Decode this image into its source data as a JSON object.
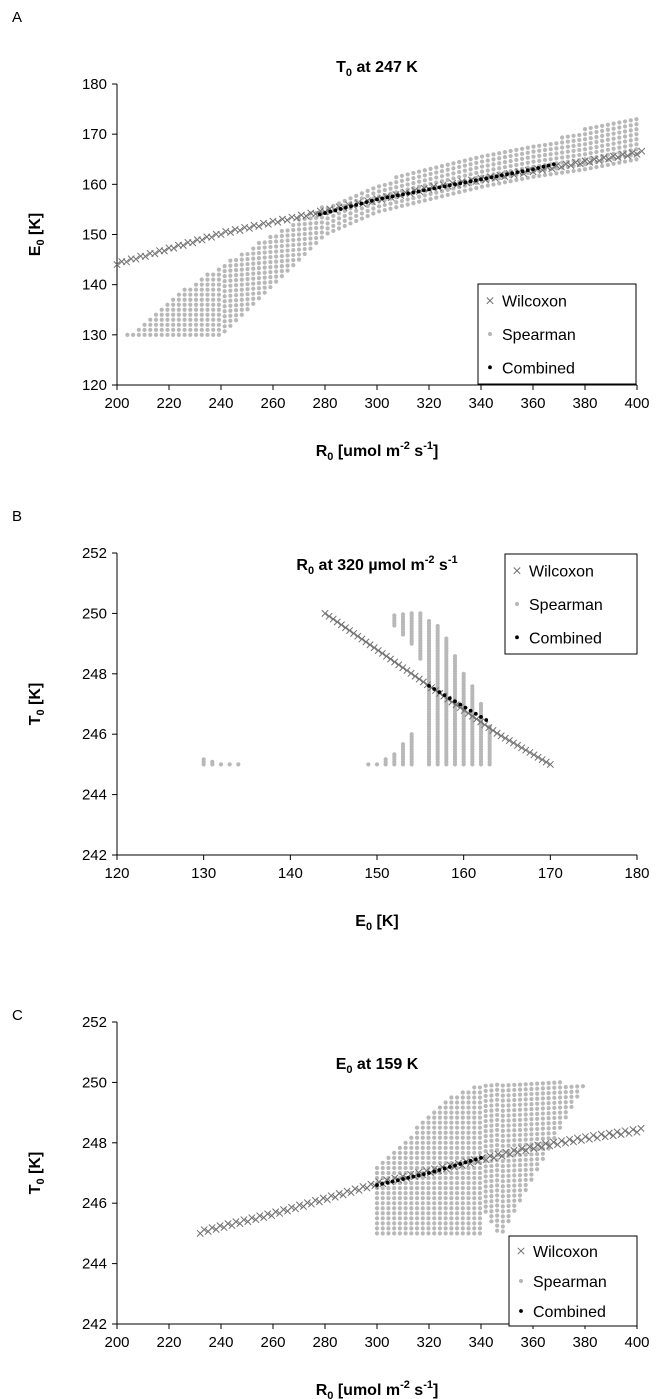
{
  "colors": {
    "wilcoxon": "#707070",
    "spearman": "#b8b8b8",
    "combined": "#000000"
  },
  "chart_data": [
    {
      "panel": "A",
      "type": "scatter",
      "title": "T0 at 247 K",
      "title_main": "T",
      "title_sub": "0",
      "title_rest": " at 247 K",
      "xlabel": "R0 [umol m-2 s-1]",
      "xlabel_parts": [
        [
          "R",
          ""
        ],
        [
          "0",
          "sub"
        ],
        [
          " [umol m",
          ""
        ],
        [
          "-2",
          "sup"
        ],
        [
          " s",
          ""
        ],
        [
          "-1",
          "sup"
        ],
        [
          "]",
          ""
        ]
      ],
      "ylabel": "E0 [K]",
      "ylabel_parts": [
        [
          "E",
          ""
        ],
        [
          "0",
          "sub"
        ],
        [
          " [K]",
          ""
        ]
      ],
      "xlim": [
        200,
        400
      ],
      "ylim": [
        120,
        180
      ],
      "xticks": [
        200,
        220,
        240,
        260,
        280,
        300,
        320,
        340,
        360,
        380,
        400
      ],
      "yticks": [
        120,
        130,
        140,
        150,
        160,
        170,
        180
      ],
      "legend_position": "bottom-right",
      "legend": [
        "Wilcoxon",
        "Spearman",
        "Combined"
      ],
      "series": [
        {
          "name": "Wilcoxon",
          "marker": "x",
          "x_range": [
            200,
            400
          ],
          "y_at_x": [
            [
              200,
              144
            ],
            [
              240,
              150
            ],
            [
              280,
              154.5
            ],
            [
              320,
              159
            ],
            [
              360,
              162.5
            ],
            [
              400,
              166
            ]
          ],
          "band_width": 1.2
        },
        {
          "name": "Spearman",
          "marker": "dot",
          "region": {
            "x_range": [
              204,
              400
            ],
            "y_min": 130,
            "lower": [
              [
                204,
                130
              ],
              [
                240,
                130
              ],
              [
                260,
                140
              ],
              [
                280,
                150
              ],
              [
                300,
                154.5
              ],
              [
                320,
                157
              ],
              [
                340,
                159.5
              ],
              [
                360,
                161.5
              ],
              [
                380,
                163
              ],
              [
                400,
                165
              ]
            ],
            "upper": [
              [
                204,
                130
              ],
              [
                220,
                137
              ],
              [
                240,
                144
              ],
              [
                260,
                150
              ],
              [
                280,
                156
              ],
              [
                300,
                160
              ],
              [
                320,
                164
              ],
              [
                340,
                166
              ],
              [
                360,
                167.5
              ],
              [
                380,
                171
              ],
              [
                400,
                173
              ]
            ]
          }
        },
        {
          "name": "Combined",
          "marker": "dot",
          "x_range": [
            278,
            368
          ],
          "y_at_x": [
            [
              278,
              154
            ],
            [
              300,
              157
            ],
            [
              320,
              159
            ],
            [
              340,
              161
            ],
            [
              360,
              163
            ],
            [
              368,
              164
            ]
          ]
        }
      ]
    },
    {
      "panel": "B",
      "type": "scatter",
      "title": "R0 at 320 µmol m-2 s-1",
      "title_main": "R",
      "title_sub": "0",
      "title_rest": " at 320 µmol m",
      "title_parts": [
        [
          "R",
          ""
        ],
        [
          "0",
          "sub"
        ],
        [
          " at 320 µmol m",
          ""
        ],
        [
          "-2",
          "sup"
        ],
        [
          " s",
          ""
        ],
        [
          "-1",
          "sup"
        ]
      ],
      "xlabel": "E0 [K]",
      "xlabel_parts": [
        [
          "E",
          ""
        ],
        [
          "0",
          "sub"
        ],
        [
          " [K]",
          ""
        ]
      ],
      "ylabel": "T0 [K]",
      "ylabel_parts": [
        [
          "T",
          ""
        ],
        [
          "0",
          "sub"
        ],
        [
          " [K]",
          ""
        ]
      ],
      "xlim": [
        120,
        180
      ],
      "ylim": [
        242,
        252
      ],
      "xticks": [
        120,
        130,
        140,
        150,
        160,
        170,
        180
      ],
      "yticks": [
        242,
        244,
        246,
        248,
        250,
        252
      ],
      "legend_position": "top-right",
      "legend": [
        "Wilcoxon",
        "Spearman",
        "Combined"
      ],
      "series": [
        {
          "name": "Wilcoxon",
          "marker": "x",
          "x_range": [
            144,
            170
          ],
          "y_at_x": [
            [
              144,
              250
            ],
            [
              150,
              248.8
            ],
            [
              156,
              247.6
            ],
            [
              160,
              246.8
            ],
            [
              164,
              246
            ],
            [
              170,
              245
            ]
          ]
        },
        {
          "name": "Spearman",
          "marker": "dot",
          "columns": [
            [
              130,
              245,
              245.2
            ],
            [
              131,
              245,
              245.1
            ],
            [
              132,
              245,
              245.05
            ],
            [
              133,
              245,
              245
            ],
            [
              134,
              245,
              245
            ],
            [
              149,
              245,
              245
            ],
            [
              150,
              245,
              245.05
            ],
            [
              151,
              245,
              245.2
            ],
            [
              152,
              245,
              245.4
            ],
            [
              153,
              245,
              245.7
            ],
            [
              154,
              245,
              246
            ],
            [
              152,
              249.6,
              250
            ],
            [
              153,
              249.3,
              250
            ],
            [
              154,
              249,
              250
            ],
            [
              155,
              248.5,
              250
            ],
            [
              156,
              245,
              249.8
            ],
            [
              157,
              245,
              249.6
            ],
            [
              158,
              245,
              249.2
            ],
            [
              159,
              245,
              248.6
            ],
            [
              160,
              245,
              248
            ],
            [
              161,
              245,
              247.6
            ],
            [
              162,
              245,
              247
            ],
            [
              163,
              245,
              246.3
            ]
          ]
        },
        {
          "name": "Combined",
          "marker": "dot",
          "x_range": [
            156,
            163
          ],
          "y_at_x": [
            [
              156,
              247.6
            ],
            [
              163,
              246.4
            ]
          ]
        }
      ]
    },
    {
      "panel": "C",
      "type": "scatter",
      "title": "E0 at 159 K",
      "title_main": "E",
      "title_sub": "0",
      "title_rest": " at 159 K",
      "xlabel": "R0 [umol m-2 s-1]",
      "xlabel_parts": [
        [
          "R",
          ""
        ],
        [
          "0",
          "sub"
        ],
        [
          " [umol m",
          ""
        ],
        [
          "-2",
          "sup"
        ],
        [
          " s",
          ""
        ],
        [
          "-1",
          "sup"
        ],
        [
          "]",
          ""
        ]
      ],
      "ylabel": "T0 [K]",
      "ylabel_parts": [
        [
          "T",
          ""
        ],
        [
          "0",
          "sub"
        ],
        [
          " [K]",
          ""
        ]
      ],
      "xlim": [
        200,
        400
      ],
      "ylim": [
        242,
        252
      ],
      "xticks": [
        200,
        220,
        240,
        260,
        280,
        300,
        320,
        340,
        360,
        380,
        400
      ],
      "yticks": [
        242,
        244,
        246,
        248,
        250,
        252
      ],
      "legend_position": "bottom-right",
      "legend": [
        "Wilcoxon",
        "Spearman",
        "Combined"
      ],
      "series": [
        {
          "name": "Wilcoxon",
          "marker": "x",
          "x_range": [
            232,
            400
          ],
          "y_at_x": [
            [
              232,
              245
            ],
            [
              260,
              245.6
            ],
            [
              280,
              246.1
            ],
            [
              300,
              246.6
            ],
            [
              320,
              247
            ],
            [
              340,
              247.4
            ],
            [
              360,
              247.8
            ],
            [
              380,
              248.1
            ],
            [
              400,
              248.35
            ]
          ],
          "band_width": 0.25
        },
        {
          "name": "Spearman",
          "marker": "dot",
          "region": {
            "x_range": [
              300,
              380
            ],
            "y_min": 245,
            "lower": [
              [
                300,
                245
              ],
              [
                340,
                245
              ],
              [
                342,
                245.8
              ],
              [
                344,
                245.4
              ],
              [
                346,
                245.1
              ],
              [
                348,
                245
              ],
              [
                380,
                250
              ]
            ],
            "upper": [
              [
                300,
                247.2
              ],
              [
                310,
                248
              ],
              [
                320,
                249
              ],
              [
                330,
                249.6
              ],
              [
                340,
                250
              ],
              [
                380,
                250
              ]
            ]
          }
        },
        {
          "name": "Combined",
          "marker": "dot",
          "x_range": [
            300,
            340
          ],
          "y_at_x": [
            [
              300,
              246.6
            ],
            [
              320,
              247
            ],
            [
              340,
              247.5
            ]
          ]
        }
      ]
    }
  ]
}
